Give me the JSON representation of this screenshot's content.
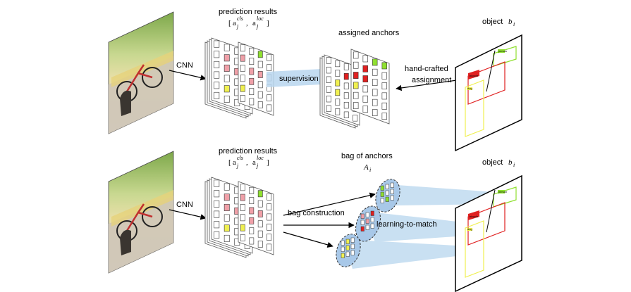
{
  "colors": {
    "red": "#e02020",
    "pink": "#f0a0a8",
    "yellow": "#f0f050",
    "green": "#90e030",
    "stripe": "#b8d6ee",
    "bag": "#a8c8e8"
  },
  "top_row": {
    "cnn_label": "CNN",
    "prediction_title": "prediction results",
    "prediction_formula": {
      "open": "[",
      "a1": "a",
      "sub1": "j",
      "sup1": "cls",
      "sep": ",  ",
      "a2": "a",
      "sub2": "j",
      "sup2": "loc",
      "close": "]"
    },
    "supervision_label": "supervision",
    "assigned_title": "assigned anchors",
    "assignment_label_1": "hand-crafted",
    "assignment_label_2": "assignment",
    "object_label": "object",
    "object_symbol": "b",
    "object_sub": "i"
  },
  "bottom_row": {
    "cnn_label": "CNN",
    "prediction_title": "prediction results",
    "prediction_formula": {
      "open": "[",
      "a1": "a",
      "sub1": "j",
      "sup1": "cls",
      "sep": ",  ",
      "a2": "a",
      "sub2": "j",
      "sup2": "loc",
      "close": "]"
    },
    "bag_title": "bag of anchors",
    "bag_symbol": "A",
    "bag_sub": "i",
    "bag_construction_label": "bag construction",
    "learning_label": "learning-to-match",
    "object_label": "object",
    "object_symbol": "b",
    "object_sub": "i"
  },
  "box_tags": {
    "person": "person",
    "bicycle": "bicycle",
    "dog": "dog"
  }
}
